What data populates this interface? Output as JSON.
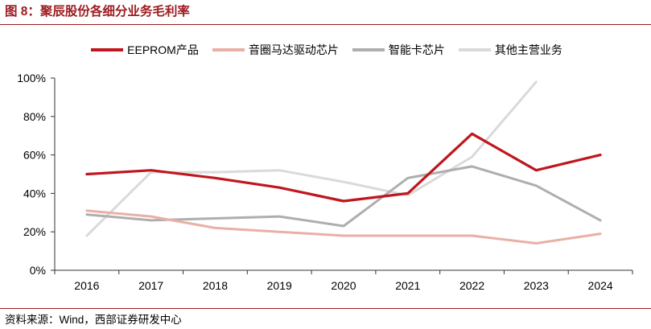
{
  "theme": {
    "accent_color": "#9E1C20",
    "axis_color": "#333333"
  },
  "chart_data": {
    "type": "line",
    "title": "图 8：聚辰股份各细分业务毛利率",
    "categories": [
      "2016",
      "2017",
      "2018",
      "2019",
      "2020",
      "2021",
      "2022",
      "2023",
      "2024"
    ],
    "ylim": [
      0,
      100
    ],
    "y_ticks": [
      0,
      20,
      40,
      60,
      80,
      100
    ],
    "y_tick_labels": [
      "0%",
      "20%",
      "40%",
      "60%",
      "80%",
      "100%"
    ],
    "grid": false,
    "legend_position": "top",
    "series": [
      {
        "name": "EEPROM产品",
        "color": "#C0161E",
        "values": [
          50,
          52,
          48,
          43,
          36,
          40,
          71,
          52,
          60
        ]
      },
      {
        "name": "音圈马达驱动芯片",
        "color": "#EAAFA5",
        "values": [
          31,
          28,
          22,
          20,
          18,
          18,
          18,
          14,
          19
        ]
      },
      {
        "name": "智能卡芯片",
        "color": "#AEAEAE",
        "values": [
          29,
          26,
          27,
          28,
          23,
          48,
          54,
          44,
          26
        ]
      },
      {
        "name": "其他主营业务",
        "color": "#DADADA",
        "values": [
          18,
          51,
          51,
          52,
          46,
          39,
          59,
          98,
          null
        ]
      }
    ]
  },
  "source": "资料来源：Wind，西部证券研发中心"
}
